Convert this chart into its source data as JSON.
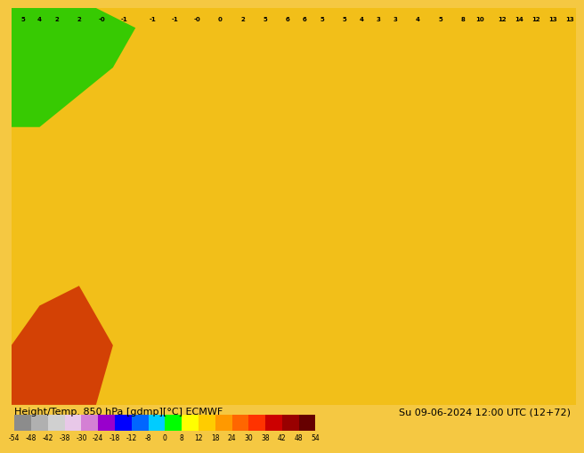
{
  "title_left": "Height/Temp. 850 hPa [gdmp][°C] ECMWF",
  "title_right": "Su 09-06-2024 12:00 UTC (12+72)",
  "colorbar_values": [
    -54,
    -48,
    -42,
    -38,
    -30,
    -24,
    -18,
    -12,
    -8,
    0,
    8,
    12,
    18,
    24,
    30,
    38,
    42,
    48,
    54
  ],
  "colorbar_colors": [
    "#8c8c8c",
    "#b0b0b0",
    "#d0d0d0",
    "#e8c8e8",
    "#d480d4",
    "#9900cc",
    "#0000ff",
    "#0066ff",
    "#00ccff",
    "#00ff00",
    "#ffff00",
    "#ffcc00",
    "#ff9900",
    "#ff6600",
    "#ff3300",
    "#cc0000",
    "#990000",
    "#660000"
  ],
  "bg_color": "#f5c842",
  "map_bg": "#f5c842",
  "fig_width": 6.34,
  "fig_height": 4.9
}
